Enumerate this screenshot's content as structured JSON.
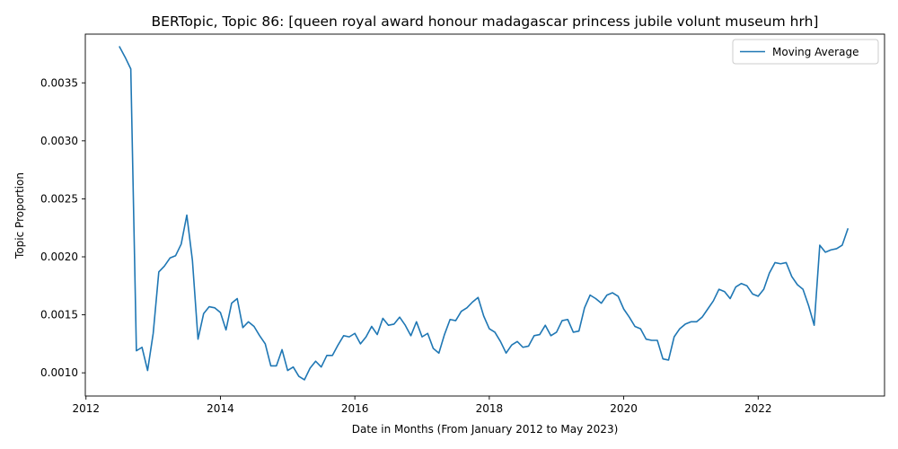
{
  "chart_data": {
    "type": "line",
    "title": "BERTopic, Topic 86: [queen royal award honour madagascar princess jubile volunt museum hrh]",
    "xlabel": "Date in Months (From January 2012 to May 2023)",
    "ylabel": "Topic Proportion",
    "x_ticks": [
      2012,
      2014,
      2016,
      2018,
      2020,
      2022
    ],
    "y_ticks": [
      "0.0010",
      "0.0015",
      "0.0020",
      "0.0025",
      "0.0030",
      "0.0035"
    ],
    "xlim": [
      2011.99,
      2023.88
    ],
    "ylim": [
      0.0008,
      0.00392
    ],
    "grid": false,
    "legend_position": "top-right",
    "line_color": "#1f77b4",
    "series": [
      {
        "name": "Moving Average",
        "x": [
          "2012-07",
          "2012-08",
          "2012-09",
          "2012-10",
          "2012-11",
          "2012-12",
          "2013-01",
          "2013-02",
          "2013-03",
          "2013-04",
          "2013-05",
          "2013-06",
          "2013-07",
          "2013-08",
          "2013-09",
          "2013-10",
          "2013-11",
          "2013-12",
          "2014-01",
          "2014-02",
          "2014-03",
          "2014-04",
          "2014-05",
          "2014-06",
          "2014-07",
          "2014-08",
          "2014-09",
          "2014-10",
          "2014-11",
          "2014-12",
          "2015-01",
          "2015-02",
          "2015-03",
          "2015-04",
          "2015-05",
          "2015-06",
          "2015-07",
          "2015-08",
          "2015-09",
          "2015-10",
          "2015-11",
          "2015-12",
          "2016-01",
          "2016-02",
          "2016-03",
          "2016-04",
          "2016-05",
          "2016-06",
          "2016-07",
          "2016-08",
          "2016-09",
          "2016-10",
          "2016-11",
          "2016-12",
          "2017-01",
          "2017-02",
          "2017-03",
          "2017-04",
          "2017-05",
          "2017-06",
          "2017-07",
          "2017-08",
          "2017-09",
          "2017-10",
          "2017-11",
          "2017-12",
          "2018-01",
          "2018-02",
          "2018-03",
          "2018-04",
          "2018-05",
          "2018-06",
          "2018-07",
          "2018-08",
          "2018-09",
          "2018-10",
          "2018-11",
          "2018-12",
          "2019-01",
          "2019-02",
          "2019-03",
          "2019-04",
          "2019-05",
          "2019-06",
          "2019-07",
          "2019-08",
          "2019-09",
          "2019-10",
          "2019-11",
          "2019-12",
          "2020-01",
          "2020-02",
          "2020-03",
          "2020-04",
          "2020-05",
          "2020-06",
          "2020-07",
          "2020-08",
          "2020-09",
          "2020-10",
          "2020-11",
          "2020-12",
          "2021-01",
          "2021-02",
          "2021-03",
          "2021-04",
          "2021-05",
          "2021-06",
          "2021-07",
          "2021-08",
          "2021-09",
          "2021-10",
          "2021-11",
          "2021-12",
          "2022-01",
          "2022-02",
          "2022-03",
          "2022-04",
          "2022-05",
          "2022-06",
          "2022-07",
          "2022-08",
          "2022-09",
          "2022-10",
          "2022-11",
          "2022-12",
          "2023-01",
          "2023-02",
          "2023-03",
          "2023-04",
          "2023-05"
        ],
        "y": [
          0.00381,
          0.00372,
          0.00362,
          0.00119,
          0.00122,
          0.00102,
          0.00134,
          0.00187,
          0.00192,
          0.00199,
          0.00201,
          0.00211,
          0.00236,
          0.00197,
          0.00129,
          0.00151,
          0.00157,
          0.00156,
          0.00152,
          0.00137,
          0.0016,
          0.00164,
          0.00139,
          0.00144,
          0.0014,
          0.00132,
          0.00125,
          0.00106,
          0.00106,
          0.0012,
          0.00102,
          0.00105,
          0.00097,
          0.00094,
          0.00104,
          0.0011,
          0.00105,
          0.00115,
          0.00115,
          0.00124,
          0.00132,
          0.00131,
          0.00134,
          0.00125,
          0.00131,
          0.0014,
          0.00133,
          0.00147,
          0.00141,
          0.00142,
          0.00148,
          0.00141,
          0.00132,
          0.00144,
          0.00131,
          0.00134,
          0.00121,
          0.00117,
          0.00133,
          0.00146,
          0.00145,
          0.00153,
          0.00156,
          0.00161,
          0.00165,
          0.00149,
          0.00138,
          0.00135,
          0.00127,
          0.00117,
          0.00124,
          0.00127,
          0.00122,
          0.00123,
          0.00132,
          0.00133,
          0.00141,
          0.00132,
          0.00135,
          0.00145,
          0.00146,
          0.00135,
          0.00136,
          0.00156,
          0.00167,
          0.00164,
          0.0016,
          0.00167,
          0.00169,
          0.00166,
          0.00155,
          0.00148,
          0.0014,
          0.00138,
          0.00129,
          0.00128,
          0.00128,
          0.00112,
          0.00111,
          0.00131,
          0.00138,
          0.00142,
          0.00144,
          0.00144,
          0.00148,
          0.00155,
          0.00162,
          0.00172,
          0.0017,
          0.00164,
          0.00174,
          0.00177,
          0.00175,
          0.00168,
          0.00166,
          0.00172,
          0.00186,
          0.00195,
          0.00194,
          0.00195,
          0.00183,
          0.00176,
          0.00172,
          0.00158,
          0.00141,
          0.0021,
          0.00204,
          0.00206,
          0.00207,
          0.0021,
          0.00224
        ]
      }
    ]
  }
}
